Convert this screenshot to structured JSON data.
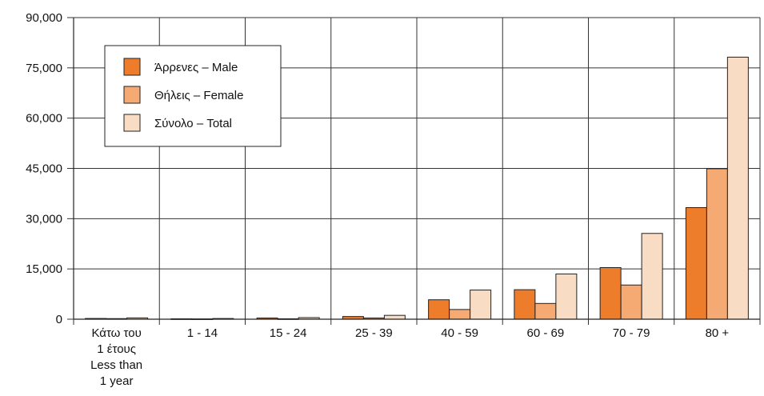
{
  "chart_data": {
    "type": "bar",
    "categories": [
      [
        "Κάτω του",
        "1 έτους",
        "Less than",
        "1 year"
      ],
      [
        "1 - 14"
      ],
      [
        "15 - 24"
      ],
      [
        "25 - 39"
      ],
      [
        "40 - 59"
      ],
      [
        "60 - 69"
      ],
      [
        "70 - 79"
      ],
      [
        "80 +"
      ]
    ],
    "series": [
      {
        "name": "Άρρενες – Male",
        "color": "#ee7d2b",
        "values": [
          220,
          120,
          350,
          800,
          5800,
          8800,
          15400,
          33300
        ]
      },
      {
        "name": "Θήλεις – Female",
        "color": "#f4aa72",
        "values": [
          180,
          90,
          130,
          350,
          2900,
          4700,
          10200,
          44900
        ]
      },
      {
        "name": "Σύνολο – Total",
        "color": "#f9dcc4",
        "values": [
          400,
          210,
          480,
          1150,
          8700,
          13500,
          25600,
          78200
        ]
      }
    ],
    "yticks": [
      "0",
      "15,000",
      "30,000",
      "45,000",
      "60,000",
      "75,000",
      "90,000"
    ],
    "ylim": [
      0,
      90000
    ],
    "grid": true,
    "legend_position": "top-left",
    "title": "",
    "xlabel": "",
    "ylabel": ""
  }
}
